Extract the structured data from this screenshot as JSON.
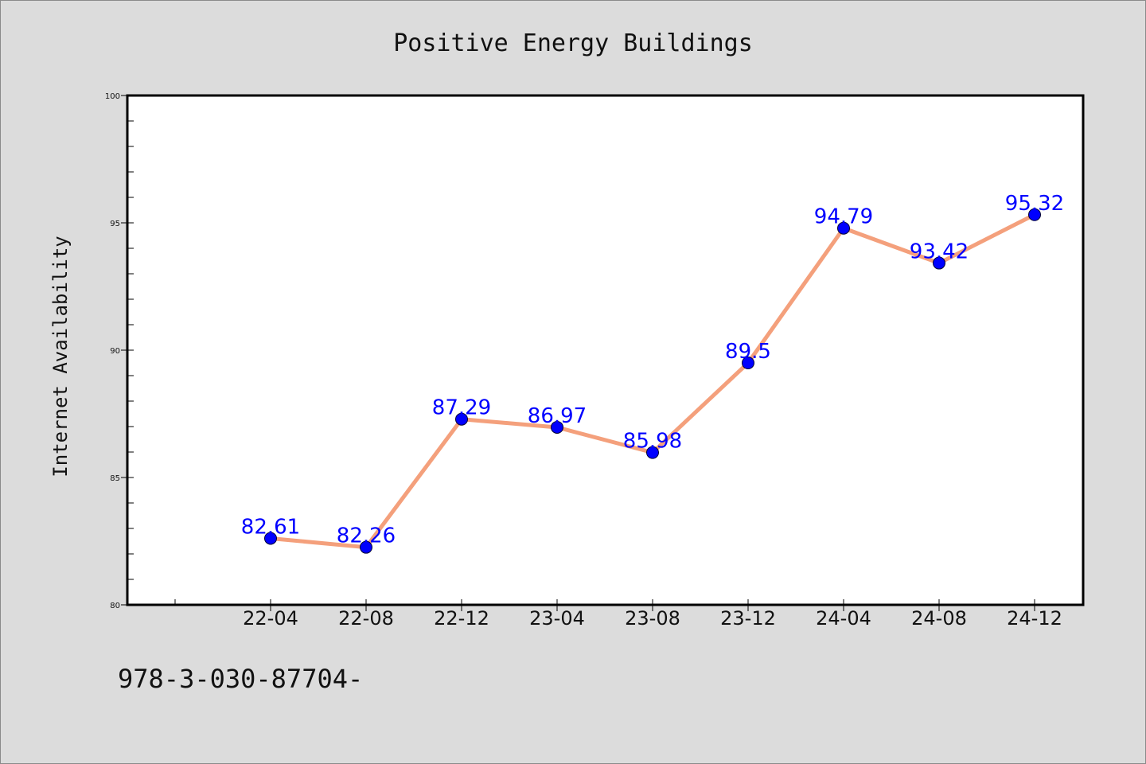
{
  "chart_data": {
    "type": "line",
    "title": "Positive Energy Buildings",
    "xlabel": "",
    "ylabel": "Internet Availability",
    "categories": [
      "22-04",
      "22-08",
      "22-12",
      "23-04",
      "23-08",
      "23-12",
      "24-04",
      "24-08",
      "24-12"
    ],
    "series": [
      {
        "values": [
          82.61,
          82.26,
          87.29,
          86.97,
          85.98,
          89.5,
          94.79,
          93.42,
          95.32
        ],
        "data_labels": [
          "82.61",
          "82.26",
          "87.29",
          "86.97",
          "85.98",
          "89.5",
          "94.79",
          "93.42",
          "95.32"
        ],
        "line_color": "#f4a07c",
        "marker_color": "#0000ff"
      }
    ],
    "ylim": [
      80,
      100
    ],
    "yticks": [
      80,
      85,
      90,
      95,
      100
    ],
    "grid": false,
    "legend": "none"
  },
  "footer_text": "978-3-030-87704-",
  "colors": {
    "background": "#dcdcdc",
    "plot_background": "#ffffff",
    "label_color": "#0000ff"
  }
}
